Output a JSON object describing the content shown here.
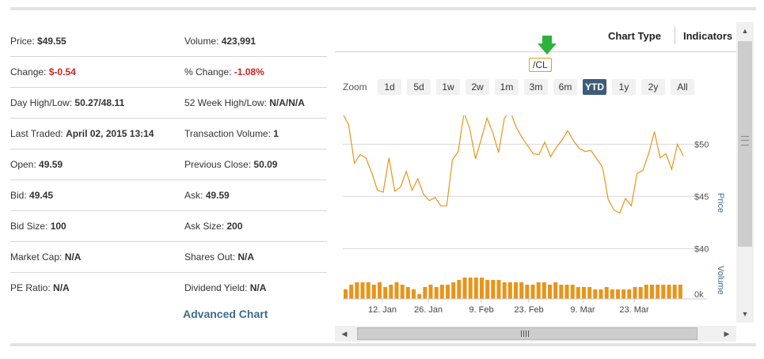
{
  "quote": {
    "rows": [
      {
        "left_label": "Price:",
        "left_value": "$49.55",
        "right_label": "Volume:",
        "right_value": "423,991"
      },
      {
        "left_label": "Change:",
        "left_value": "$-0.54",
        "right_label": "% Change:",
        "right_value": "-1.08%"
      },
      {
        "left_label": "Day High/Low:",
        "left_value": "50.27/48.11",
        "right_label": "52 Week High/Low:",
        "right_value": "N/A/N/A"
      },
      {
        "left_label": "Last Traded:",
        "left_value": "April 02, 2015 13:14",
        "right_label": "Transaction Volume:",
        "right_value": "1"
      },
      {
        "left_label": "Open:",
        "left_value": "49.59",
        "right_label": "Previous Close:",
        "right_value": "50.09"
      },
      {
        "left_label": "Bid:",
        "left_value": "49.45",
        "right_label": "Ask:",
        "right_value": "49.59"
      },
      {
        "left_label": "Bid Size:",
        "left_value": "100",
        "right_label": "Ask Size:",
        "right_value": "200"
      },
      {
        "left_label": "Market Cap:",
        "left_value": "N/A",
        "right_label": "Shares Out:",
        "right_value": "N/A"
      },
      {
        "left_label": "PE Ratio:",
        "left_value": "N/A",
        "right_label": "Dividend Yield:",
        "right_value": "N/A"
      }
    ],
    "advanced_chart_label": "Advanced Chart"
  },
  "toolbar": {
    "chart_type_label": "Chart Type",
    "indicators_label": "Indicators"
  },
  "chart": {
    "symbol": "/CL",
    "zoom_label": "Zoom",
    "zoom_options": [
      "1d",
      "5d",
      "1w",
      "2w",
      "1m",
      "3m",
      "6m",
      "YTD",
      "1y",
      "2y",
      "All"
    ],
    "active_zoom": "YTD",
    "accent_color": "#e8941a",
    "active_color": "#3d5c79",
    "arrow_color": "#2db33d"
  },
  "chart_data": {
    "type": "line",
    "ylabel": "Price",
    "y2label": "Volume",
    "ylim": [
      40,
      55
    ],
    "yticks": [
      "$50",
      "$45",
      "$40"
    ],
    "volume_tick": "0k",
    "grid": true,
    "xtick_labels": [
      "12. Jan",
      "26. Jan",
      "9. Feb",
      "23. Feb",
      "9. Mar",
      "23. Mar"
    ],
    "price_series": [
      52.9,
      51.9,
      48.2,
      49.0,
      48.7,
      47.3,
      45.6,
      45.4,
      48.7,
      45.5,
      45.9,
      47.4,
      45.6,
      46.7,
      45.2,
      44.6,
      44.9,
      44.1,
      44.1,
      48.5,
      49.3,
      53.0,
      51.5,
      48.6,
      50.5,
      52.5,
      51.1,
      49.2,
      52.5,
      53.2,
      51.7,
      50.7,
      49.9,
      49.1,
      49.0,
      50.2,
      48.8,
      49.7,
      50.4,
      51.3,
      50.3,
      49.6,
      49.3,
      49.4,
      48.6,
      47.8,
      44.7,
      43.7,
      43.4,
      44.8,
      44.1,
      47.2,
      47.5,
      49.1,
      51.2,
      48.7,
      49.1,
      47.6,
      50.0,
      48.9
    ],
    "volume_series": [
      0.4,
      0.6,
      0.7,
      0.7,
      0.7,
      0.6,
      0.7,
      0.5,
      0.6,
      0.7,
      0.6,
      0.5,
      0.4,
      0.2,
      0.5,
      0.6,
      0.5,
      0.6,
      0.6,
      0.7,
      0.8,
      0.9,
      0.9,
      0.9,
      0.9,
      0.8,
      0.8,
      0.8,
      0.7,
      0.7,
      0.7,
      0.7,
      0.6,
      0.6,
      0.7,
      0.7,
      0.6,
      0.7,
      0.6,
      0.6,
      0.6,
      0.5,
      0.5,
      0.5,
      0.4,
      0.4,
      0.5,
      0.4,
      0.4,
      0.4,
      0.4,
      0.5,
      0.5,
      0.6,
      0.6,
      0.6,
      0.6,
      0.6,
      0.6,
      0.6
    ]
  }
}
